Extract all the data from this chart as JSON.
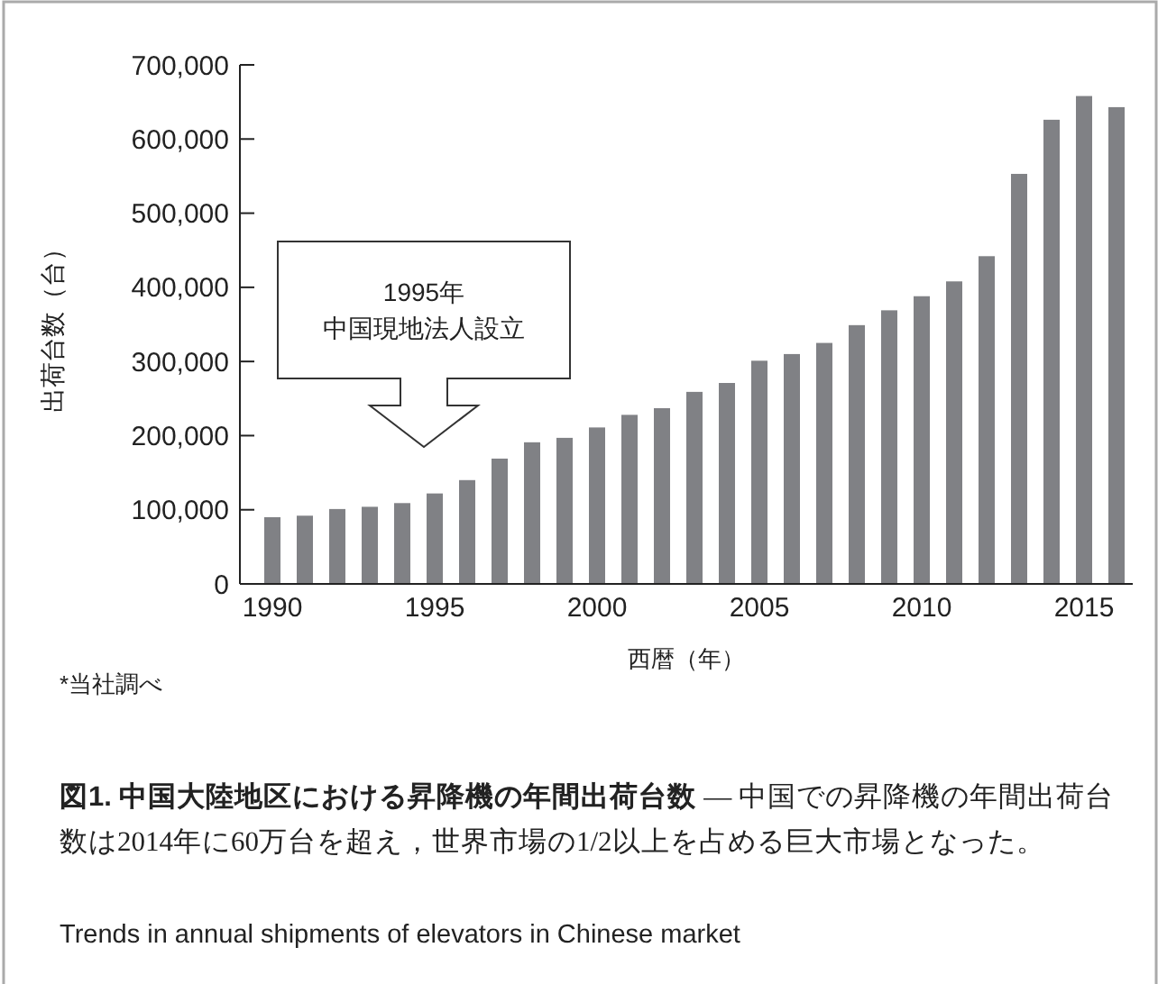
{
  "chart_data": {
    "type": "bar",
    "title": "図1.  中国大陸地区における昇降機の年間出荷台数",
    "subtitle": "— 中国での昇降機の年間出荷台数は2014年に60万台を超え，世界市場の1/2以上を占める巨大市場となった。",
    "xlabel": "西暦（年）",
    "ylabel": "出荷台数（台）",
    "x": [
      1990,
      1991,
      1992,
      1993,
      1994,
      1995,
      1996,
      1997,
      1998,
      1999,
      2000,
      2001,
      2002,
      2003,
      2004,
      2005,
      2006,
      2007,
      2008,
      2009,
      2010,
      2011,
      2012,
      2013,
      2014,
      2015,
      2016
    ],
    "values": [
      90000,
      92000,
      101000,
      104000,
      109000,
      122000,
      140000,
      169000,
      191000,
      197000,
      211000,
      228000,
      237000,
      259000,
      271000,
      301000,
      310000,
      325000,
      349000,
      369000,
      388000,
      408000,
      442000,
      553000,
      626000,
      658000,
      643000
    ],
    "color": "#808185",
    "xlim": [
      1989,
      2016.5
    ],
    "xticks": [
      1990,
      1995,
      2000,
      2005,
      2010,
      2015
    ],
    "ylim": [
      0,
      700000
    ],
    "yticks": [
      0,
      {
        "value": 100000,
        "label": "100,000"
      },
      {
        "value": 200000,
        "label": "200,000"
      },
      {
        "value": 300000,
        "label": "300,000"
      },
      {
        "value": 400000,
        "label": "400,000"
      },
      {
        "value": 500000,
        "label": "500,000"
      },
      {
        "value": 600000,
        "label": "600,000"
      },
      {
        "value": 700000,
        "label": "700,000"
      }
    ],
    "annotations": [
      "1995年",
      "中国現地法人設立",
      "*当社調べ",
      "Trends in annual shipments of elevators in Chinese market"
    ]
  }
}
